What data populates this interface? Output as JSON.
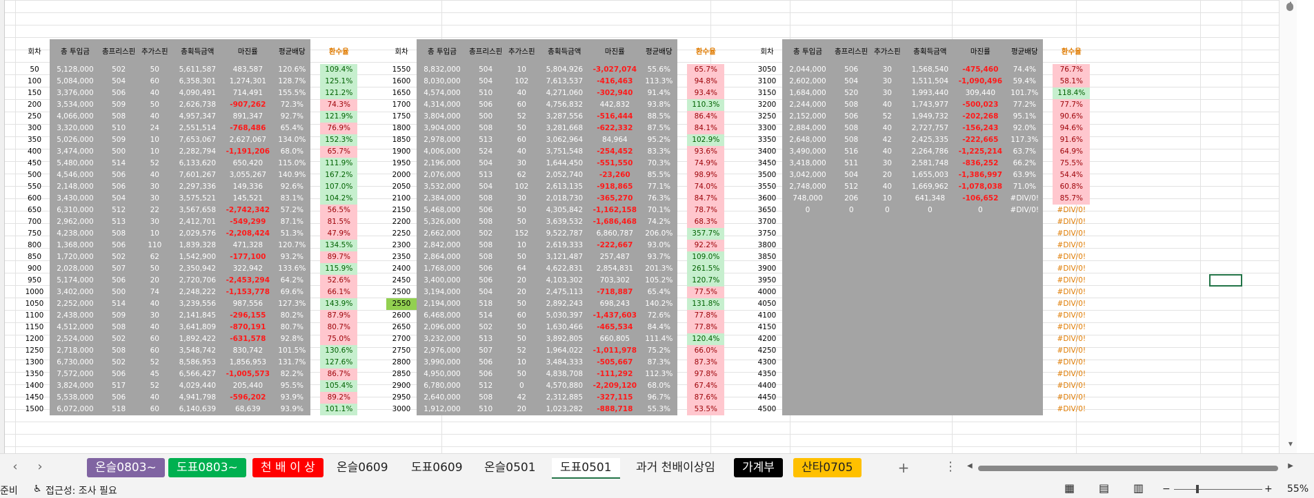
{
  "header": {
    "round": "회차",
    "cols": [
      "총 투입금",
      "총프리스핀",
      "추가스핀",
      "총획득금액",
      "마진률",
      "평균배당"
    ],
    "rate": "환수율"
  },
  "blocks": [
    {
      "rows": [
        [
          "50",
          "5,128,000",
          "502",
          "50",
          "5,611,587",
          "483,587",
          "120.6%",
          "109.4%"
        ],
        [
          "100",
          "5,084,000",
          "504",
          "60",
          "6,358,301",
          "1,274,301",
          "128.7%",
          "125.1%"
        ],
        [
          "150",
          "3,376,000",
          "506",
          "40",
          "4,090,491",
          "714,491",
          "155.5%",
          "121.2%"
        ],
        [
          "200",
          "3,534,000",
          "509",
          "50",
          "2,626,738",
          "-907,262",
          "72.3%",
          "74.3%"
        ],
        [
          "250",
          "4,066,000",
          "508",
          "40",
          "4,957,347",
          "891,347",
          "92.7%",
          "121.9%"
        ],
        [
          "300",
          "3,320,000",
          "510",
          "24",
          "2,551,514",
          "-768,486",
          "65.4%",
          "76.9%"
        ],
        [
          "350",
          "5,026,000",
          "509",
          "10",
          "7,653,067",
          "2,627,067",
          "134.0%",
          "152.3%"
        ],
        [
          "400",
          "3,474,000",
          "500",
          "10",
          "2,282,794",
          "-1,191,206",
          "68.0%",
          "65.7%"
        ],
        [
          "450",
          "5,480,000",
          "514",
          "52",
          "6,133,620",
          "650,420",
          "115.0%",
          "111.9%"
        ],
        [
          "500",
          "4,546,000",
          "506",
          "40",
          "7,601,267",
          "3,055,267",
          "140.9%",
          "167.2%"
        ],
        [
          "550",
          "2,148,000",
          "506",
          "30",
          "2,297,336",
          "149,336",
          "92.6%",
          "107.0%"
        ],
        [
          "600",
          "3,430,000",
          "504",
          "30",
          "3,575,521",
          "145,521",
          "83.1%",
          "104.2%"
        ],
        [
          "650",
          "6,310,000",
          "512",
          "22",
          "3,567,658",
          "-2,742,342",
          "57.2%",
          "56.5%"
        ],
        [
          "700",
          "2,962,000",
          "513",
          "30",
          "2,412,701",
          "-549,299",
          "87.1%",
          "81.5%"
        ],
        [
          "750",
          "4,238,000",
          "508",
          "10",
          "2,029,576",
          "-2,208,424",
          "51.3%",
          "47.9%"
        ],
        [
          "800",
          "1,368,000",
          "506",
          "110",
          "1,839,328",
          "471,328",
          "120.7%",
          "134.5%"
        ],
        [
          "850",
          "1,720,000",
          "502",
          "62",
          "1,542,900",
          "-177,100",
          "93.2%",
          "89.7%"
        ],
        [
          "900",
          "2,028,000",
          "507",
          "50",
          "2,350,942",
          "322,942",
          "133.6%",
          "115.9%"
        ],
        [
          "950",
          "5,174,000",
          "506",
          "20",
          "2,720,706",
          "-2,453,294",
          "64.2%",
          "52.6%"
        ],
        [
          "1000",
          "3,402,000",
          "500",
          "74",
          "2,248,222",
          "-1,153,778",
          "69.6%",
          "66.1%"
        ],
        [
          "1050",
          "2,252,000",
          "514",
          "40",
          "3,239,556",
          "987,556",
          "127.3%",
          "143.9%"
        ],
        [
          "1100",
          "2,438,000",
          "509",
          "30",
          "2,141,845",
          "-296,155",
          "80.2%",
          "87.9%"
        ],
        [
          "1150",
          "4,512,000",
          "508",
          "40",
          "3,641,809",
          "-870,191",
          "80.7%",
          "80.7%"
        ],
        [
          "1200",
          "2,524,000",
          "502",
          "60",
          "1,892,422",
          "-631,578",
          "92.8%",
          "75.0%"
        ],
        [
          "1250",
          "2,718,000",
          "508",
          "60",
          "3,548,742",
          "830,742",
          "101.5%",
          "130.6%"
        ],
        [
          "1300",
          "6,730,000",
          "502",
          "52",
          "8,586,953",
          "1,856,953",
          "131.7%",
          "127.6%"
        ],
        [
          "1350",
          "7,572,000",
          "506",
          "45",
          "6,566,427",
          "-1,005,573",
          "82.2%",
          "86.7%"
        ],
        [
          "1400",
          "3,824,000",
          "517",
          "52",
          "4,029,440",
          "205,440",
          "95.5%",
          "105.4%"
        ],
        [
          "1450",
          "5,538,000",
          "506",
          "40",
          "4,941,798",
          "-596,202",
          "93.9%",
          "89.2%"
        ],
        [
          "1500",
          "6,072,000",
          "518",
          "60",
          "6,140,639",
          "68,639",
          "93.9%",
          "101.1%"
        ]
      ]
    },
    {
      "rows": [
        [
          "1550",
          "8,832,000",
          "504",
          "10",
          "5,804,926",
          "-3,027,074",
          "55.6%",
          "65.7%"
        ],
        [
          "1600",
          "8,030,000",
          "504",
          "102",
          "7,613,537",
          "-416,463",
          "113.3%",
          "94.8%"
        ],
        [
          "1650",
          "4,574,000",
          "510",
          "40",
          "4,271,060",
          "-302,940",
          "91.4%",
          "93.4%"
        ],
        [
          "1700",
          "4,314,000",
          "506",
          "60",
          "4,756,832",
          "442,832",
          "93.8%",
          "110.3%"
        ],
        [
          "1750",
          "3,804,000",
          "500",
          "52",
          "3,287,556",
          "-516,444",
          "88.5%",
          "86.4%"
        ],
        [
          "1800",
          "3,904,000",
          "508",
          "50",
          "3,281,668",
          "-622,332",
          "87.5%",
          "84.1%"
        ],
        [
          "1850",
          "2,978,000",
          "513",
          "60",
          "3,062,964",
          "84,964",
          "95.2%",
          "102.9%"
        ],
        [
          "1900",
          "4,006,000",
          "524",
          "40",
          "3,751,548",
          "-254,452",
          "83.3%",
          "93.6%"
        ],
        [
          "1950",
          "2,196,000",
          "504",
          "30",
          "1,644,450",
          "-551,550",
          "70.3%",
          "74.9%"
        ],
        [
          "2000",
          "2,076,000",
          "513",
          "62",
          "2,052,740",
          "-23,260",
          "85.5%",
          "98.9%"
        ],
        [
          "2050",
          "3,532,000",
          "504",
          "102",
          "2,613,135",
          "-918,865",
          "77.1%",
          "74.0%"
        ],
        [
          "2100",
          "2,384,000",
          "508",
          "30",
          "2,018,730",
          "-365,270",
          "76.3%",
          "84.7%"
        ],
        [
          "2150",
          "5,468,000",
          "506",
          "50",
          "4,305,842",
          "-1,162,158",
          "70.1%",
          "78.7%"
        ],
        [
          "2200",
          "5,326,000",
          "508",
          "50",
          "3,639,532",
          "-1,686,468",
          "74.2%",
          "68.3%"
        ],
        [
          "2250",
          "2,662,000",
          "502",
          "152",
          "9,522,787",
          "6,860,787",
          "206.0%",
          "357.7%"
        ],
        [
          "2300",
          "2,842,000",
          "508",
          "10",
          "2,619,333",
          "-222,667",
          "93.0%",
          "92.2%"
        ],
        [
          "2350",
          "2,864,000",
          "508",
          "50",
          "3,121,487",
          "257,487",
          "93.7%",
          "109.0%"
        ],
        [
          "2400",
          "1,768,000",
          "506",
          "64",
          "4,622,831",
          "2,854,831",
          "201.3%",
          "261.5%"
        ],
        [
          "2450",
          "3,400,000",
          "506",
          "20",
          "4,103,302",
          "703,302",
          "105.2%",
          "120.7%"
        ],
        [
          "2500",
          "3,194,000",
          "504",
          "20",
          "2,475,113",
          "-718,887",
          "65.4%",
          "77.5%"
        ],
        [
          "2550",
          "2,194,000",
          "518",
          "50",
          "2,892,243",
          "698,243",
          "140.2%",
          "131.8%"
        ],
        [
          "2600",
          "6,468,000",
          "514",
          "60",
          "5,030,397",
          "-1,437,603",
          "72.6%",
          "77.8%"
        ],
        [
          "2650",
          "2,096,000",
          "502",
          "50",
          "1,630,466",
          "-465,534",
          "84.4%",
          "77.8%"
        ],
        [
          "2700",
          "3,232,000",
          "513",
          "50",
          "3,892,805",
          "660,805",
          "111.4%",
          "120.4%"
        ],
        [
          "2750",
          "2,976,000",
          "507",
          "52",
          "1,964,022",
          "-1,011,978",
          "75.2%",
          "66.0%"
        ],
        [
          "2800",
          "3,990,000",
          "506",
          "10",
          "3,484,333",
          "-505,667",
          "87.3%",
          "87.3%"
        ],
        [
          "2850",
          "4,950,000",
          "506",
          "50",
          "4,838,708",
          "-111,292",
          "112.3%",
          "97.8%"
        ],
        [
          "2900",
          "6,780,000",
          "512",
          "0",
          "4,570,880",
          "-2,209,120",
          "68.0%",
          "67.4%"
        ],
        [
          "2950",
          "2,640,000",
          "508",
          "42",
          "2,312,885",
          "-327,115",
          "96.7%",
          "87.6%"
        ],
        [
          "3000",
          "1,912,000",
          "510",
          "20",
          "1,023,282",
          "-888,718",
          "55.3%",
          "53.5%"
        ]
      ]
    },
    {
      "rows": [
        [
          "3050",
          "2,044,000",
          "506",
          "30",
          "1,568,540",
          "-475,460",
          "74.4%",
          "76.7%"
        ],
        [
          "3100",
          "2,602,000",
          "504",
          "30",
          "1,511,504",
          "-1,090,496",
          "59.4%",
          "58.1%"
        ],
        [
          "3150",
          "1,684,000",
          "520",
          "30",
          "1,993,440",
          "309,440",
          "101.7%",
          "118.4%"
        ],
        [
          "3200",
          "2,244,000",
          "508",
          "40",
          "1,743,977",
          "-500,023",
          "77.2%",
          "77.7%"
        ],
        [
          "3250",
          "2,152,000",
          "506",
          "52",
          "1,949,732",
          "-202,268",
          "95.1%",
          "90.6%"
        ],
        [
          "3300",
          "2,884,000",
          "508",
          "40",
          "2,727,757",
          "-156,243",
          "92.0%",
          "94.6%"
        ],
        [
          "3350",
          "2,648,000",
          "508",
          "42",
          "2,425,335",
          "-222,665",
          "117.3%",
          "91.6%"
        ],
        [
          "3400",
          "3,490,000",
          "516",
          "40",
          "2,264,786",
          "-1,225,214",
          "63.7%",
          "64.9%"
        ],
        [
          "3450",
          "3,418,000",
          "511",
          "30",
          "2,581,748",
          "-836,252",
          "66.2%",
          "75.5%"
        ],
        [
          "3500",
          "3,042,000",
          "504",
          "20",
          "1,655,003",
          "-1,386,997",
          "63.9%",
          "54.4%"
        ],
        [
          "3550",
          "2,748,000",
          "512",
          "40",
          "1,669,962",
          "-1,078,038",
          "71.0%",
          "60.8%"
        ],
        [
          "3600",
          "748,000",
          "206",
          "10",
          "641,348",
          "-106,652",
          "#DIV/0!",
          "85.7%"
        ],
        [
          "3650",
          "0",
          "0",
          "0",
          "0",
          "0",
          "#DIV/0!",
          "#DIV/0!"
        ],
        [
          "3700",
          "",
          "",
          "",
          "",
          "",
          "",
          "#DIV/0!"
        ],
        [
          "3750",
          "",
          "",
          "",
          "",
          "",
          "",
          "#DIV/0!"
        ],
        [
          "3800",
          "",
          "",
          "",
          "",
          "",
          "",
          "#DIV/0!"
        ],
        [
          "3850",
          "",
          "",
          "",
          "",
          "",
          "",
          "#DIV/0!"
        ],
        [
          "3900",
          "",
          "",
          "",
          "",
          "",
          "",
          "#DIV/0!"
        ],
        [
          "3950",
          "",
          "",
          "",
          "",
          "",
          "",
          "#DIV/0!"
        ],
        [
          "4000",
          "",
          "",
          "",
          "",
          "",
          "",
          "#DIV/0!"
        ],
        [
          "4050",
          "",
          "",
          "",
          "",
          "",
          "",
          "#DIV/0!"
        ],
        [
          "4100",
          "",
          "",
          "",
          "",
          "",
          "",
          "#DIV/0!"
        ],
        [
          "4150",
          "",
          "",
          "",
          "",
          "",
          "",
          "#DIV/0!"
        ],
        [
          "4200",
          "",
          "",
          "",
          "",
          "",
          "",
          "#DIV/0!"
        ],
        [
          "4250",
          "",
          "",
          "",
          "",
          "",
          "",
          "#DIV/0!"
        ],
        [
          "4300",
          "",
          "",
          "",
          "",
          "",
          "",
          "#DIV/0!"
        ],
        [
          "4350",
          "",
          "",
          "",
          "",
          "",
          "",
          "#DIV/0!"
        ],
        [
          "4400",
          "",
          "",
          "",
          "",
          "",
          "",
          "#DIV/0!"
        ],
        [
          "4450",
          "",
          "",
          "",
          "",
          "",
          "",
          "#DIV/0!"
        ],
        [
          "4500",
          "",
          "",
          "",
          "",
          "",
          "",
          "#DIV/0!"
        ]
      ]
    }
  ],
  "highlight_round": "2550",
  "colors": {
    "data_fill": "#a4a4a4",
    "negative": "#ff1a1a",
    "rate_good_bg": "#c6efce",
    "rate_bad_bg": "#ffc7ce",
    "rate_header": "#e07b00",
    "highlight_round_bg": "#92d050",
    "active_tab_underline": "#217346"
  },
  "tabs": [
    {
      "label": "온슬0803~",
      "bg": "#8064a2",
      "fg": "#ffffff"
    },
    {
      "label": "도표0803~",
      "bg": "#00b050",
      "fg": "#ffffff"
    },
    {
      "label": "천 배 이 상",
      "bg": "#ff0000",
      "fg": "#ffffff"
    },
    {
      "label": "온슬0609",
      "bg": "",
      "fg": "#222222"
    },
    {
      "label": "도표0609",
      "bg": "",
      "fg": "#222222"
    },
    {
      "label": "온슬0501",
      "bg": "",
      "fg": "#222222"
    },
    {
      "label": "도표0501",
      "bg": "",
      "fg": "#222222",
      "active": true
    },
    {
      "label": "과거 천배이상임",
      "bg": "",
      "fg": "#222222"
    },
    {
      "label": "가계부",
      "bg": "#000000",
      "fg": "#ffffff"
    },
    {
      "label": "산타0705",
      "bg": "#ffc000",
      "fg": "#222222"
    }
  ],
  "tab_nav": {
    "prev": "‹",
    "next": "›",
    "add": "+",
    "more": "⋮"
  },
  "status": {
    "ready": "준비",
    "accessibility": "접근성: 조사 필요",
    "zoom": "55%",
    "zoom_minus": "−",
    "zoom_plus": "+"
  },
  "icons": [
    "accessibility-icon",
    "normal-view-icon",
    "page-layout-icon",
    "page-break-icon"
  ]
}
